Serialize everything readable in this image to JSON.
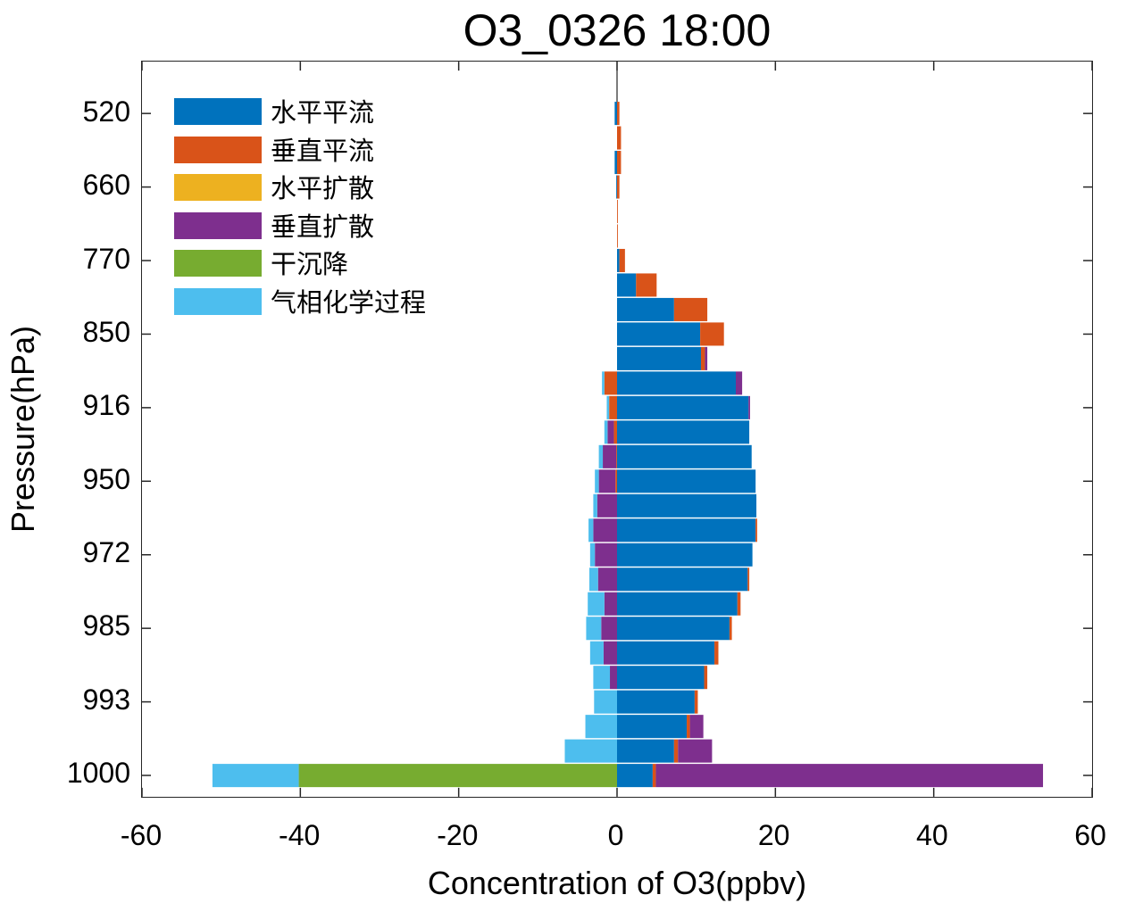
{
  "chart_data": {
    "type": "bar",
    "orientation": "horizontal",
    "stacked": true,
    "title": "O3_0326 18:00",
    "xlabel": "Concentration of O3(ppbv)",
    "ylabel": "Pressure(hPa)",
    "xlim": [
      -60,
      60
    ],
    "xticks": [
      -60,
      -40,
      -20,
      0,
      20,
      40,
      60
    ],
    "yticks_labels": [
      "520",
      "660",
      "770",
      "850",
      "916",
      "950",
      "972",
      "985",
      "993",
      "1000"
    ],
    "legend_position": "upper left",
    "grid": false,
    "levels": 28,
    "series": [
      {
        "name": "水平平流",
        "color": "#0072BD",
        "values": [
          -0.3,
          0.0,
          -0.3,
          -0.1,
          0.0,
          0.0,
          0.3,
          2.4,
          7.2,
          10.5,
          10.6,
          15.0,
          16.6,
          16.7,
          17.0,
          17.5,
          17.6,
          17.5,
          17.1,
          16.5,
          15.2,
          14.2,
          12.3,
          11.0,
          9.8,
          8.8,
          7.2,
          4.5
        ]
      },
      {
        "name": "垂直平流",
        "color": "#D95319",
        "values": [
          0.3,
          0.5,
          0.5,
          0.3,
          0.1,
          0.1,
          0.7,
          2.6,
          4.2,
          3.0,
          0.5,
          -1.6,
          -1.0,
          -0.4,
          -0.1,
          -0.2,
          0.0,
          0.2,
          0.0,
          0.2,
          0.4,
          0.3,
          0.5,
          0.4,
          0.4,
          0.4,
          0.5,
          0.4
        ]
      },
      {
        "name": "水平扩散",
        "color": "#EDB120",
        "values": [
          0,
          0,
          0,
          0,
          0,
          0,
          0,
          0,
          0,
          0,
          0,
          0,
          0,
          0,
          0,
          0,
          0,
          0,
          0,
          0,
          0,
          0,
          0,
          0,
          0,
          0,
          0,
          0
        ]
      },
      {
        "name": "垂直扩散",
        "color": "#7E2F8E",
        "values": [
          0,
          0,
          0,
          0,
          0,
          0,
          0,
          0,
          0,
          0,
          0.3,
          0.8,
          0.2,
          -0.8,
          -1.7,
          -2.1,
          -2.5,
          -3.0,
          -2.8,
          -2.4,
          -1.6,
          -2.0,
          -1.7,
          -0.9,
          0.0,
          1.7,
          4.3,
          48.9
        ]
      },
      {
        "name": "干沉降",
        "color": "#77AC30",
        "values": [
          0,
          0,
          0,
          0,
          0,
          0,
          0,
          0,
          0,
          0,
          0,
          0,
          0,
          0,
          0,
          0,
          0,
          0,
          0,
          0,
          0,
          0,
          0,
          0,
          0,
          0,
          0,
          -40.2
        ]
      },
      {
        "name": "气相化学过程",
        "color": "#4DBEEE",
        "values": [
          0,
          0,
          0,
          0,
          0,
          0,
          0,
          0,
          0,
          0,
          0,
          -0.3,
          -0.3,
          -0.4,
          -0.5,
          -0.5,
          -0.5,
          -0.6,
          -0.6,
          -1.1,
          -2.1,
          -1.9,
          -1.7,
          -2.1,
          -2.9,
          -4.0,
          -6.6,
          -10.9
        ]
      }
    ]
  }
}
